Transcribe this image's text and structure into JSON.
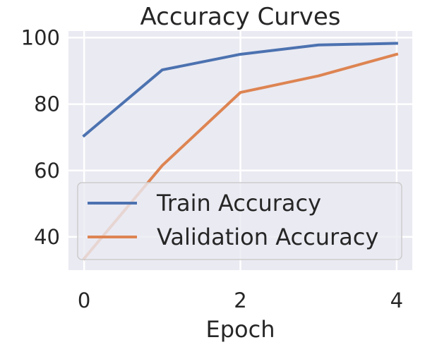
{
  "chart_data": {
    "type": "line",
    "title": "Accuracy Curves",
    "xlabel": "Epoch",
    "ylabel": "",
    "x": [
      0,
      1,
      2,
      3,
      4
    ],
    "xticks": [
      0,
      2,
      4
    ],
    "yticks": [
      40,
      60,
      80,
      100
    ],
    "xlim": [
      -0.2,
      4.2
    ],
    "ylim": [
      30,
      102
    ],
    "grid": true,
    "legend_position": "lower-right",
    "series": [
      {
        "name": "Train Accuracy",
        "color": "#4c72b0",
        "values": [
          70.5,
          90.3,
          95.0,
          97.8,
          98.3
        ]
      },
      {
        "name": "Validation Accuracy",
        "color": "#dd8452",
        "values": [
          33.5,
          61.5,
          83.5,
          88.5,
          95.0
        ]
      }
    ],
    "background_color": "#eaeaf2",
    "grid_color": "#ffffff"
  }
}
